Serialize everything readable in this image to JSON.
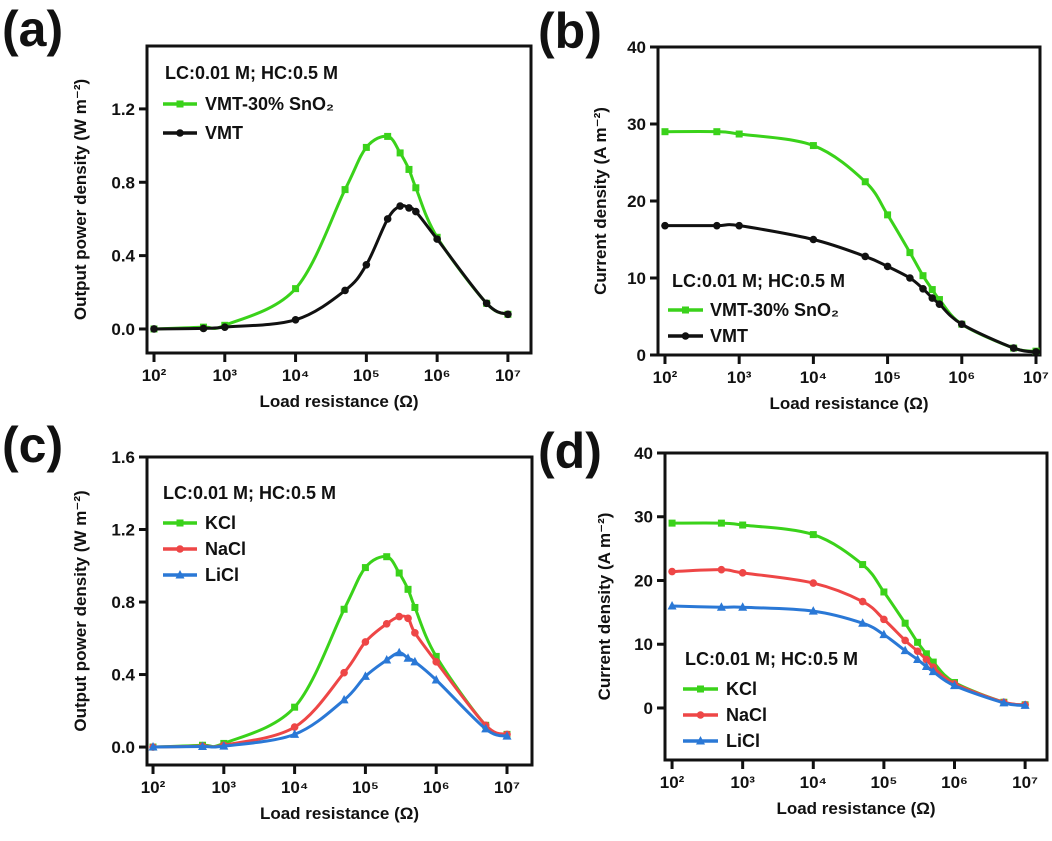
{
  "chart_data": [
    {
      "id": "a",
      "type": "line",
      "panel_label": "(a)",
      "xlabel": "Load resistance (Ω)",
      "ylabel": "Output power density (W m⁻²)",
      "xscale": "log",
      "x": [
        100,
        500,
        1000,
        10000,
        50000,
        100000,
        200000,
        300000,
        400000,
        500000,
        1000000,
        5000000,
        10000000
      ],
      "xticks": [
        {
          "v": 2,
          "label": "10²"
        },
        {
          "v": 3,
          "label": "10³"
        },
        {
          "v": 4,
          "label": "10⁴"
        },
        {
          "v": 5,
          "label": "10⁵"
        },
        {
          "v": 6,
          "label": "10⁶"
        },
        {
          "v": 7,
          "label": "10⁷"
        }
      ],
      "yticks": [
        {
          "v": 0,
          "label": "0.0"
        },
        {
          "v": 0.4,
          "label": "0.4"
        },
        {
          "v": 0.8,
          "label": "0.8"
        },
        {
          "v": 1.2,
          "label": "1.2"
        }
      ],
      "ylim": [
        -0.131,
        1.543
      ],
      "legend_title": "LC:0.01 M; HC:0.5 M",
      "legend_position": "top-left",
      "series": [
        {
          "name": "VMT-30% SnO₂",
          "color": "#3ad21a",
          "marker": "square",
          "values": [
            0,
            0.01,
            0.02,
            0.22,
            0.76,
            0.99,
            1.05,
            0.96,
            0.87,
            0.77,
            0.5,
            0.14,
            0.08
          ]
        },
        {
          "name": "VMT",
          "color": "#111111",
          "marker": "circle",
          "values": [
            0,
            0.003,
            0.01,
            0.05,
            0.21,
            0.35,
            0.6,
            0.67,
            0.66,
            0.64,
            0.49,
            0.14,
            0.08
          ]
        }
      ]
    },
    {
      "id": "b",
      "type": "line",
      "panel_label": "(b)",
      "xlabel": "Load resistance (Ω)",
      "ylabel": "Current density (A m⁻²)",
      "xscale": "log",
      "x": [
        100,
        500,
        1000,
        10000,
        50000,
        100000,
        200000,
        300000,
        400000,
        500000,
        1000000,
        5000000,
        10000000
      ],
      "xticks": [
        {
          "v": 2,
          "label": "10²"
        },
        {
          "v": 3,
          "label": "10³"
        },
        {
          "v": 4,
          "label": "10⁴"
        },
        {
          "v": 5,
          "label": "10⁵"
        },
        {
          "v": 6,
          "label": "10⁶"
        },
        {
          "v": 7,
          "label": "10⁷"
        }
      ],
      "yticks": [
        {
          "v": 0,
          "label": "0"
        },
        {
          "v": 10,
          "label": "10"
        },
        {
          "v": 20,
          "label": "20"
        },
        {
          "v": 30,
          "label": "30"
        },
        {
          "v": 40,
          "label": "40"
        }
      ],
      "ylim": [
        0,
        40
      ],
      "legend_title": "LC:0.01 M; HC:0.5 M",
      "legend_position": "bottom-left",
      "series": [
        {
          "name": "VMT-30% SnO₂",
          "color": "#3ad21a",
          "marker": "square",
          "values": [
            29,
            29,
            28.7,
            27.2,
            22.5,
            18.2,
            13.3,
            10.3,
            8.5,
            7.2,
            4.0,
            0.9,
            0.5
          ]
        },
        {
          "name": "VMT",
          "color": "#111111",
          "marker": "circle",
          "values": [
            16.8,
            16.8,
            16.8,
            15.0,
            12.8,
            11.5,
            10.0,
            8.6,
            7.4,
            6.6,
            4.0,
            0.9,
            0.4
          ]
        }
      ]
    },
    {
      "id": "c",
      "type": "line",
      "panel_label": "(c)",
      "xlabel": "Load resistance (Ω)",
      "ylabel": "Output power density (W m⁻²)",
      "xscale": "log",
      "x": [
        100,
        500,
        1000,
        10000,
        50000,
        100000,
        200000,
        300000,
        400000,
        500000,
        1000000,
        5000000,
        10000000
      ],
      "xticks": [
        {
          "v": 2,
          "label": "10²"
        },
        {
          "v": 3,
          "label": "10³"
        },
        {
          "v": 4,
          "label": "10⁴"
        },
        {
          "v": 5,
          "label": "10⁵"
        },
        {
          "v": 6,
          "label": "10⁶"
        },
        {
          "v": 7,
          "label": "10⁷"
        }
      ],
      "yticks": [
        {
          "v": 0,
          "label": "0.0"
        },
        {
          "v": 0.4,
          "label": "0.4"
        },
        {
          "v": 0.8,
          "label": "0.8"
        },
        {
          "v": 1.2,
          "label": "1.2"
        },
        {
          "v": 1.6,
          "label": "1.6"
        }
      ],
      "ylim": [
        -0.099,
        1.6
      ],
      "legend_title": "LC:0.01 M; HC:0.5 M",
      "legend_position": "top-left",
      "series": [
        {
          "name": "KCl",
          "color": "#3ad21a",
          "marker": "square",
          "values": [
            0,
            0.01,
            0.02,
            0.22,
            0.76,
            0.99,
            1.05,
            0.96,
            0.87,
            0.77,
            0.5,
            0.12,
            0.07
          ]
        },
        {
          "name": "NaCl",
          "color": "#ee4646",
          "marker": "circle",
          "values": [
            0,
            0.005,
            0.01,
            0.11,
            0.41,
            0.58,
            0.68,
            0.72,
            0.71,
            0.63,
            0.47,
            0.12,
            0.07
          ]
        },
        {
          "name": "LiCl",
          "color": "#2a78d6",
          "marker": "triangle",
          "values": [
            0,
            0.003,
            0.005,
            0.07,
            0.26,
            0.39,
            0.48,
            0.52,
            0.49,
            0.47,
            0.37,
            0.1,
            0.06
          ]
        }
      ]
    },
    {
      "id": "d",
      "type": "line",
      "panel_label": "(d)",
      "xlabel": "Load resistance (Ω)",
      "ylabel": "Current density  (A m⁻²)",
      "xscale": "log",
      "x": [
        100,
        500,
        1000,
        10000,
        50000,
        100000,
        200000,
        300000,
        400000,
        500000,
        1000000,
        5000000,
        10000000
      ],
      "xticks": [
        {
          "v": 2,
          "label": "10²"
        },
        {
          "v": 3,
          "label": "10³"
        },
        {
          "v": 4,
          "label": "10⁴"
        },
        {
          "v": 5,
          "label": "10⁵"
        },
        {
          "v": 6,
          "label": "10⁶"
        },
        {
          "v": 7,
          "label": "10⁷"
        }
      ],
      "yticks": [
        {
          "v": 0,
          "label": "0"
        },
        {
          "v": 10,
          "label": "10"
        },
        {
          "v": 20,
          "label": "20"
        },
        {
          "v": 30,
          "label": "30"
        },
        {
          "v": 40,
          "label": "40"
        }
      ],
      "ylim": [
        -8.16,
        40
      ],
      "legend_title": "LC:0.01 M; HC:0.5 M",
      "legend_position": "bottom-left",
      "series": [
        {
          "name": "KCl",
          "color": "#3ad21a",
          "marker": "square",
          "values": [
            29,
            29,
            28.7,
            27.2,
            22.5,
            18.2,
            13.3,
            10.3,
            8.5,
            7.2,
            4.0,
            0.9,
            0.5
          ]
        },
        {
          "name": "NaCl",
          "color": "#ee4646",
          "marker": "circle",
          "values": [
            21.4,
            21.7,
            21.2,
            19.6,
            16.7,
            13.9,
            10.6,
            8.9,
            7.6,
            6.4,
            3.8,
            0.9,
            0.5
          ]
        },
        {
          "name": "LiCl",
          "color": "#2a78d6",
          "marker": "triangle",
          "values": [
            16.0,
            15.8,
            15.8,
            15.2,
            13.3,
            11.5,
            9.0,
            7.6,
            6.5,
            5.7,
            3.5,
            0.8,
            0.4
          ]
        }
      ]
    }
  ]
}
